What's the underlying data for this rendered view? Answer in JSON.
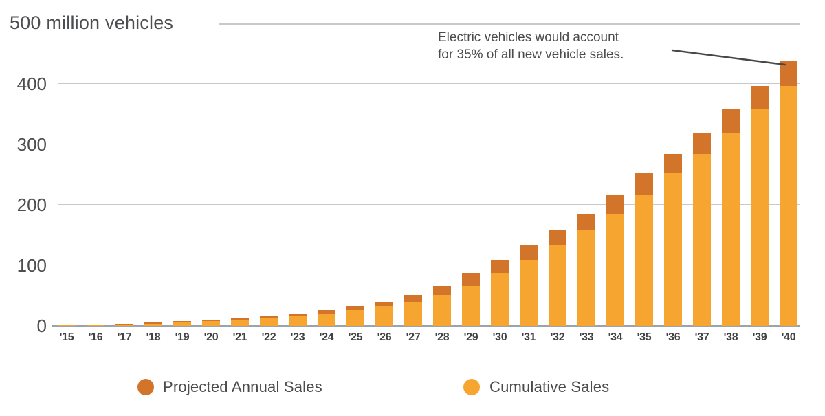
{
  "chart": {
    "title": "500 million vehicles",
    "annotation": {
      "line1": "Electric vehicles would account",
      "line2": "for 35% of all new vehicle sales."
    },
    "legend": [
      {
        "label": "Projected Annual Sales",
        "color": "#d2752b"
      },
      {
        "label": "Cumulative Sales",
        "color": "#f7a531"
      }
    ],
    "colors": {
      "annual": "#d2752b",
      "cumulative": "#f7a531",
      "gridline": "#c9c9c9",
      "axis_line": "#9aa3ab",
      "text": "#4d4e50",
      "annotation_line": "#47484a"
    }
  },
  "chart_data": {
    "type": "bar",
    "stacked": true,
    "title": "500 million vehicles",
    "unit": "million vehicles",
    "categories": [
      "'15",
      "'16",
      "'17",
      "'18",
      "'19",
      "'20",
      "'21",
      "'22",
      "'23",
      "'24",
      "'25",
      "'26",
      "'27",
      "'28",
      "'29",
      "'30",
      "'31",
      "'32",
      "'33",
      "'34",
      "'35",
      "'36",
      "'37",
      "'38",
      "'39",
      "'40"
    ],
    "series": [
      {
        "name": "Cumulative Sales",
        "color": "#f7a531",
        "values": [
          0.8,
          1.6,
          2.5,
          3.5,
          5.3,
          7.5,
          10,
          12.2,
          15.5,
          20,
          26,
          32.5,
          40,
          51,
          66,
          87,
          109,
          133,
          158,
          185,
          216,
          252,
          284,
          319,
          359,
          397
        ]
      },
      {
        "name": "Projected Annual Sales",
        "color": "#d2752b",
        "values": [
          0.8,
          0.9,
          1.0,
          1.8,
          2.2,
          2.5,
          2.2,
          3.3,
          4.5,
          6,
          6.5,
          7.5,
          11,
          15,
          21,
          22,
          24,
          25,
          27,
          31,
          36,
          32,
          35,
          40,
          38,
          40
        ]
      }
    ],
    "y_ticks": [
      0,
      100,
      200,
      300,
      400
    ],
    "ylim": [
      0,
      500
    ],
    "grid": true,
    "legend_position": "bottom",
    "annotation": "Electric vehicles would account for 35% of all new vehicle sales."
  }
}
